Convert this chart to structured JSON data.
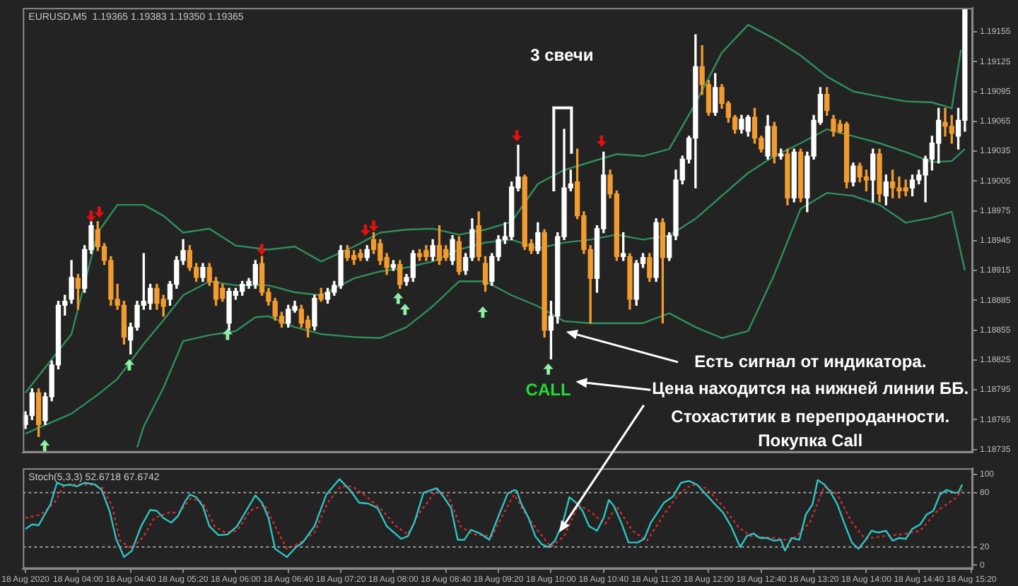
{
  "chart_data": [
    {
      "type": "candlestick",
      "title": "EURUSD,M5  1.19365 1.19383 1.19350 1.19365",
      "xlim": [
        "2020-08-18T03:18",
        "2020-08-18T15:21"
      ],
      "ylim": [
        1.18732,
        1.19179
      ],
      "yticks": [
        1.18735,
        1.18765,
        1.18795,
        1.18825,
        1.18855,
        1.18885,
        1.18915,
        1.18945,
        1.18975,
        1.19005,
        1.19035,
        1.19065,
        1.19095,
        1.19125,
        1.19155
      ],
      "tick_labels": "y",
      "x": [
        "2020-08-18T03:20",
        "2020-08-18T03:25",
        "2020-08-18T03:30",
        "2020-08-18T03:35",
        "2020-08-18T03:40",
        "2020-08-18T03:45",
        "2020-08-18T03:50",
        "2020-08-18T03:55",
        "2020-08-18T04:00",
        "2020-08-18T04:05",
        "2020-08-18T04:10",
        "2020-08-18T04:15",
        "2020-08-18T04:20",
        "2020-08-18T04:25",
        "2020-08-18T04:30",
        "2020-08-18T04:35",
        "2020-08-18T04:40",
        "2020-08-18T04:45",
        "2020-08-18T04:50",
        "2020-08-18T04:55",
        "2020-08-18T05:00",
        "2020-08-18T05:05",
        "2020-08-18T05:10",
        "2020-08-18T05:15",
        "2020-08-18T05:20",
        "2020-08-18T05:25",
        "2020-08-18T05:30",
        "2020-08-18T05:35",
        "2020-08-18T05:40",
        "2020-08-18T05:45",
        "2020-08-18T05:50",
        "2020-08-18T05:55",
        "2020-08-18T06:00",
        "2020-08-18T06:05",
        "2020-08-18T06:10",
        "2020-08-18T06:15",
        "2020-08-18T06:20",
        "2020-08-18T06:25",
        "2020-08-18T06:30",
        "2020-08-18T06:35",
        "2020-08-18T06:40",
        "2020-08-18T06:45",
        "2020-08-18T06:50",
        "2020-08-18T06:55",
        "2020-08-18T07:00",
        "2020-08-18T07:05",
        "2020-08-18T07:10",
        "2020-08-18T07:15",
        "2020-08-18T07:20",
        "2020-08-18T07:25",
        "2020-08-18T07:30",
        "2020-08-18T07:35",
        "2020-08-18T07:40",
        "2020-08-18T07:45",
        "2020-08-18T07:50",
        "2020-08-18T07:55",
        "2020-08-18T08:00",
        "2020-08-18T08:05",
        "2020-08-18T08:10",
        "2020-08-18T08:15",
        "2020-08-18T08:20",
        "2020-08-18T08:25",
        "2020-08-18T08:30",
        "2020-08-18T08:35",
        "2020-08-18T08:40",
        "2020-08-18T08:45",
        "2020-08-18T08:50",
        "2020-08-18T08:55",
        "2020-08-18T09:00",
        "2020-08-18T09:05",
        "2020-08-18T09:10",
        "2020-08-18T09:15",
        "2020-08-18T09:20",
        "2020-08-18T09:25",
        "2020-08-18T09:30",
        "2020-08-18T09:35",
        "2020-08-18T09:40",
        "2020-08-18T09:45",
        "2020-08-18T09:50",
        "2020-08-18T09:55",
        "2020-08-18T10:00",
        "2020-08-18T10:05",
        "2020-08-18T10:10",
        "2020-08-18T10:15",
        "2020-08-18T10:20",
        "2020-08-18T10:25",
        "2020-08-18T10:30",
        "2020-08-18T10:35",
        "2020-08-18T10:40",
        "2020-08-18T10:45",
        "2020-08-18T10:50",
        "2020-08-18T10:55",
        "2020-08-18T11:00",
        "2020-08-18T11:05",
        "2020-08-18T11:10",
        "2020-08-18T11:15",
        "2020-08-18T11:20",
        "2020-08-18T11:25",
        "2020-08-18T11:30",
        "2020-08-18T11:35",
        "2020-08-18T11:40",
        "2020-08-18T11:45",
        "2020-08-18T11:50",
        "2020-08-18T11:55",
        "2020-08-18T12:00",
        "2020-08-18T12:05",
        "2020-08-18T12:10",
        "2020-08-18T12:15",
        "2020-08-18T12:20",
        "2020-08-18T12:25",
        "2020-08-18T12:30",
        "2020-08-18T12:35",
        "2020-08-18T12:40",
        "2020-08-18T12:45",
        "2020-08-18T12:50",
        "2020-08-18T12:55",
        "2020-08-18T13:00",
        "2020-08-18T13:05",
        "2020-08-18T13:10",
        "2020-08-18T13:15",
        "2020-08-18T13:20",
        "2020-08-18T13:25",
        "2020-08-18T13:30",
        "2020-08-18T13:35",
        "2020-08-18T13:40",
        "2020-08-18T13:45",
        "2020-08-18T13:50",
        "2020-08-18T13:55",
        "2020-08-18T14:00",
        "2020-08-18T14:05",
        "2020-08-18T14:10",
        "2020-08-18T14:15",
        "2020-08-18T14:20",
        "2020-08-18T14:25",
        "2020-08-18T14:30",
        "2020-08-18T14:35",
        "2020-08-18T14:40",
        "2020-08-18T14:45",
        "2020-08-18T14:50",
        "2020-08-18T14:55",
        "2020-08-18T15:00",
        "2020-08-18T15:05",
        "2020-08-18T15:10",
        "2020-08-18T15:15"
      ],
      "ohlc": [
        [
          1.1876,
          1.18773,
          1.18756,
          1.18769
        ],
        [
          1.18769,
          1.18796,
          1.18765,
          1.18792
        ],
        [
          1.18792,
          1.18796,
          1.18748,
          1.1876
        ],
        [
          1.18764,
          1.18792,
          1.1876,
          1.18788
        ],
        [
          1.18788,
          1.18824,
          1.18784,
          1.1882
        ],
        [
          1.1882,
          1.18884,
          1.18816,
          1.1888
        ],
        [
          1.1888,
          1.1889,
          1.1887,
          1.18884
        ],
        [
          1.18886,
          1.18925,
          1.18882,
          1.18908
        ],
        [
          1.18907,
          1.18911,
          1.18876,
          1.18897
        ],
        [
          1.18897,
          1.1894,
          1.18893,
          1.18936
        ],
        [
          1.18936,
          1.18964,
          1.18932,
          1.1896
        ],
        [
          1.18956,
          1.18964,
          1.18935,
          1.18939
        ],
        [
          1.18939,
          1.18942,
          1.18921,
          1.18925
        ],
        [
          1.18925,
          1.18929,
          1.1888,
          1.18886
        ],
        [
          1.18886,
          1.18901,
          1.18876,
          1.1888
        ],
        [
          1.1888,
          1.18884,
          1.18841,
          1.18848
        ],
        [
          1.18845,
          1.18862,
          1.18831,
          1.18858
        ],
        [
          1.18858,
          1.18884,
          1.18855,
          1.1888
        ],
        [
          1.1888,
          1.18932,
          1.18876,
          1.18884
        ],
        [
          1.18882,
          1.18901,
          1.18876,
          1.18897
        ],
        [
          1.18897,
          1.18901,
          1.18876,
          1.18882
        ],
        [
          1.18886,
          1.1889,
          1.18869,
          1.18879
        ],
        [
          1.18886,
          1.18904,
          1.1888,
          1.18901
        ],
        [
          1.18901,
          1.18929,
          1.18897,
          1.18925
        ],
        [
          1.18925,
          1.18946,
          1.18921,
          1.18935
        ],
        [
          1.18935,
          1.1894,
          1.18915,
          1.18918
        ],
        [
          1.18918,
          1.18922,
          1.18904,
          1.18908
        ],
        [
          1.18908,
          1.18922,
          1.18904,
          1.18918
        ],
        [
          1.18918,
          1.18922,
          1.189,
          1.18904
        ],
        [
          1.18904,
          1.18908,
          1.1888,
          1.18886
        ],
        [
          1.18897,
          1.18901,
          1.18884,
          1.18887
        ],
        [
          1.18862,
          1.18897,
          1.18855,
          1.18894
        ],
        [
          1.1889,
          1.18897,
          1.18886,
          1.18894
        ],
        [
          1.18894,
          1.18904,
          1.1889,
          1.18901
        ],
        [
          1.189,
          1.18907,
          1.18897,
          1.18904
        ],
        [
          1.18901,
          1.18925,
          1.18897,
          1.18921
        ],
        [
          1.18922,
          1.18929,
          1.1889,
          1.18893
        ],
        [
          1.18893,
          1.18897,
          1.1888,
          1.18884
        ],
        [
          1.18884,
          1.18887,
          1.18865,
          1.18869
        ],
        [
          1.18869,
          1.18873,
          1.18858,
          1.18862
        ],
        [
          1.18862,
          1.1888,
          1.18858,
          1.18876
        ],
        [
          1.18875,
          1.18884,
          1.18873,
          1.18879
        ],
        [
          1.18876,
          1.1888,
          1.18858,
          1.18862
        ],
        [
          1.18865,
          1.18869,
          1.18848,
          1.18857
        ],
        [
          1.18859,
          1.1889,
          1.18855,
          1.18887
        ],
        [
          1.18891,
          1.18897,
          1.18884,
          1.18886
        ],
        [
          1.18886,
          1.18897,
          1.18882,
          1.18893
        ],
        [
          1.18893,
          1.18904,
          1.1889,
          1.189
        ],
        [
          1.189,
          1.1894,
          1.18897,
          1.18935
        ],
        [
          1.18935,
          1.1894,
          1.18925,
          1.18928
        ],
        [
          1.1893,
          1.18935,
          1.18921,
          1.18926
        ],
        [
          1.18932,
          1.18936,
          1.18925,
          1.18928
        ],
        [
          1.18928,
          1.1894,
          1.18925,
          1.18936
        ],
        [
          1.18946,
          1.18953,
          1.18932,
          1.18936
        ],
        [
          1.18942,
          1.18946,
          1.18921,
          1.18925
        ],
        [
          1.18928,
          1.18932,
          1.18911,
          1.18918
        ],
        [
          1.18918,
          1.18925,
          1.18915,
          1.18921
        ],
        [
          1.18921,
          1.18925,
          1.18897,
          1.18901
        ],
        [
          1.18904,
          1.18911,
          1.189,
          1.18908
        ],
        [
          1.18908,
          1.18935,
          1.18904,
          1.18932
        ],
        [
          1.18932,
          1.18936,
          1.18925,
          1.18929
        ],
        [
          1.18935,
          1.1894,
          1.18925,
          1.18929
        ],
        [
          1.18929,
          1.18946,
          1.18925,
          1.1894
        ],
        [
          1.1894,
          1.1896,
          1.18921,
          1.18925
        ],
        [
          1.18936,
          1.1894,
          1.18925,
          1.18928
        ],
        [
          1.18925,
          1.1895,
          1.18921,
          1.18946
        ],
        [
          1.18944,
          1.18949,
          1.18911,
          1.18914
        ],
        [
          1.18915,
          1.18932,
          1.18911,
          1.18928
        ],
        [
          1.18928,
          1.18967,
          1.18925,
          1.18956
        ],
        [
          1.1896,
          1.18974,
          1.18925,
          1.18929
        ],
        [
          1.18922,
          1.18929,
          1.18894,
          1.18901
        ],
        [
          1.18904,
          1.18932,
          1.189,
          1.18929
        ],
        [
          1.18929,
          1.1895,
          1.18925,
          1.18946
        ],
        [
          1.18946,
          1.18963,
          1.18942,
          1.18949
        ],
        [
          1.18949,
          1.19004,
          1.18946,
          1.18999
        ],
        [
          1.18998,
          1.19041,
          1.18995,
          1.19009
        ],
        [
          1.19009,
          1.19011,
          1.18936,
          1.18939
        ],
        [
          1.18942,
          1.18946,
          1.18932,
          1.18935
        ],
        [
          1.18935,
          1.18963,
          1.18932,
          1.18953
        ],
        [
          1.18953,
          1.18956,
          1.18848,
          1.18855
        ],
        [
          1.18855,
          1.18884,
          1.18826,
          1.18869
        ],
        [
          1.18869,
          1.18953,
          1.18862,
          1.18949
        ],
        [
          1.18949,
          1.19057,
          1.18946,
          1.18998
        ],
        [
          1.18998,
          1.19016,
          1.18995,
          1.19002
        ],
        [
          1.19004,
          1.19037,
          1.18967,
          1.1897
        ],
        [
          1.1897,
          1.18974,
          1.18932,
          1.18936
        ],
        [
          1.18936,
          1.1894,
          1.18862,
          1.18907
        ],
        [
          1.18907,
          1.1896,
          1.18893,
          1.18957
        ],
        [
          1.18957,
          1.19034,
          1.18953,
          1.19011
        ],
        [
          1.19011,
          1.19016,
          1.18988,
          1.18992
        ],
        [
          1.18992,
          1.18995,
          1.18925,
          1.18929
        ],
        [
          1.18929,
          1.18953,
          1.18925,
          1.18932
        ],
        [
          1.18929,
          1.18932,
          1.18876,
          1.18886
        ],
        [
          1.18886,
          1.18925,
          1.1888,
          1.18922
        ],
        [
          1.18922,
          1.18932,
          1.18918,
          1.18928
        ],
        [
          1.18928,
          1.18932,
          1.18904,
          1.18908
        ],
        [
          1.18908,
          1.18967,
          1.18904,
          1.18963
        ],
        [
          1.18963,
          1.18967,
          1.18862,
          1.18928
        ],
        [
          1.18928,
          1.18953,
          1.18925,
          1.1895
        ],
        [
          1.1895,
          1.19016,
          1.18946,
          1.19006
        ],
        [
          1.19006,
          1.1903,
          1.19002,
          1.19027
        ],
        [
          1.19027,
          1.1905,
          1.19023,
          1.19048
        ],
        [
          1.19048,
          1.19152,
          1.18998,
          1.1912
        ],
        [
          1.1912,
          1.19141,
          1.19092,
          1.19102
        ],
        [
          1.19102,
          1.19106,
          1.19071,
          1.19074
        ],
        [
          1.19074,
          1.19113,
          1.19071,
          1.19099
        ],
        [
          1.19099,
          1.19102,
          1.19078,
          1.19083
        ],
        [
          1.19083,
          1.19085,
          1.19064,
          1.19069
        ],
        [
          1.19069,
          1.19071,
          1.19053,
          1.19057
        ],
        [
          1.19057,
          1.19071,
          1.19053,
          1.19067
        ],
        [
          1.19055,
          1.19071,
          1.1905,
          1.19069
        ],
        [
          1.19069,
          1.19078,
          1.19043,
          1.19048
        ],
        [
          1.19048,
          1.1905,
          1.19034,
          1.19037
        ],
        [
          1.1903,
          1.19071,
          1.19027,
          1.1906
        ],
        [
          1.1906,
          1.19064,
          1.19023,
          1.1903
        ],
        [
          1.1903,
          1.19037,
          1.19027,
          1.19032
        ],
        [
          1.19032,
          1.19037,
          1.18981,
          1.18988
        ],
        [
          1.18988,
          1.19037,
          1.18984,
          1.19034
        ],
        [
          1.19034,
          1.19037,
          1.18984,
          1.18988
        ],
        [
          1.18988,
          1.19034,
          1.18974,
          1.1903
        ],
        [
          1.1903,
          1.19071,
          1.19027,
          1.19066
        ],
        [
          1.19064,
          1.19099,
          1.19062,
          1.19092
        ],
        [
          1.19092,
          1.19099,
          1.19071,
          1.19076
        ],
        [
          1.19067,
          1.19071,
          1.1905,
          1.19055
        ],
        [
          1.19062,
          1.19066,
          1.19053,
          1.19055
        ],
        [
          1.19062,
          1.19064,
          1.18998,
          1.19004
        ],
        [
          1.19004,
          1.19023,
          1.19,
          1.1902
        ],
        [
          1.1902,
          1.19023,
          1.19004,
          1.19009
        ],
        [
          1.19009,
          1.19016,
          1.18995,
          1.19006
        ],
        [
          1.19006,
          1.19037,
          1.18984,
          1.19032
        ],
        [
          1.19032,
          1.19037,
          1.18984,
          1.18992
        ],
        [
          1.1899,
          1.19011,
          1.18981,
          1.19004
        ],
        [
          1.19004,
          1.19016,
          1.18988,
          1.18998
        ],
        [
          1.18998,
          1.19009,
          1.18988,
          1.18995
        ],
        [
          1.18998,
          1.19006,
          1.1899,
          1.18995
        ],
        [
          1.18998,
          1.19011,
          1.1899,
          1.19006
        ],
        [
          1.19006,
          1.19016,
          1.19002,
          1.19011
        ],
        [
          1.19011,
          1.1903,
          1.18984,
          1.19027
        ],
        [
          1.19027,
          1.1905,
          1.19016,
          1.19043
        ],
        [
          1.19043,
          1.19078,
          1.19023,
          1.19066
        ],
        [
          1.19064,
          1.19078,
          1.1905,
          1.1906
        ],
        [
          1.1906,
          1.19071,
          1.19043,
          1.19053
        ],
        [
          1.1905,
          1.19078,
          1.19037,
          1.19066
        ],
        [
          1.19066,
          1.19178,
          1.19055,
          1.19178
        ]
      ],
      "colors": [
        "#ffffff",
        "#ffffff",
        "#f29b2e",
        "#ffffff",
        "#ffffff",
        "#ffffff",
        "#ffffff",
        "#ffffff",
        "#f29b2e",
        "#ffffff",
        "#ffffff",
        "#f29b2e",
        "#f29b2e",
        "#f29b2e",
        "#f29b2e",
        "#f29b2e",
        "#ffffff",
        "#ffffff",
        "#ffffff",
        "#ffffff",
        "#f29b2e",
        "#f29b2e",
        "#ffffff",
        "#ffffff",
        "#ffffff",
        "#f29b2e",
        "#f29b2e",
        "#ffffff",
        "#f29b2e",
        "#f29b2e",
        "#f29b2e",
        "#ffffff",
        "#ffffff",
        "#ffffff",
        "#ffffff",
        "#ffffff",
        "#f29b2e",
        "#f29b2e",
        "#f29b2e",
        "#f29b2e",
        "#ffffff",
        "#ffffff",
        "#f29b2e",
        "#f29b2e",
        "#ffffff",
        "#f29b2e",
        "#ffffff",
        "#ffffff",
        "#ffffff",
        "#f29b2e",
        "#f29b2e",
        "#f29b2e",
        "#ffffff",
        "#f29b2e",
        "#f29b2e",
        "#f29b2e",
        "#ffffff",
        "#f29b2e",
        "#ffffff",
        "#ffffff",
        "#f29b2e",
        "#f29b2e",
        "#ffffff",
        "#f29b2e",
        "#f29b2e",
        "#ffffff",
        "#f29b2e",
        "#ffffff",
        "#ffffff",
        "#f29b2e",
        "#f29b2e",
        "#ffffff",
        "#ffffff",
        "#ffffff",
        "#ffffff",
        "#ffffff",
        "#f29b2e",
        "#f29b2e",
        "#ffffff",
        "#f29b2e",
        "#ffffff",
        "#ffffff",
        "#ffffff",
        "#ffffff",
        "#f29b2e",
        "#f29b2e",
        "#f29b2e",
        "#ffffff",
        "#ffffff",
        "#f29b2e",
        "#f29b2e",
        "#ffffff",
        "#f29b2e",
        "#ffffff",
        "#ffffff",
        "#f29b2e",
        "#ffffff",
        "#f29b2e",
        "#ffffff",
        "#ffffff",
        "#ffffff",
        "#ffffff",
        "#ffffff",
        "#f29b2e",
        "#f29b2e",
        "#ffffff",
        "#f29b2e",
        "#f29b2e",
        "#f29b2e",
        "#ffffff",
        "#ffffff",
        "#f29b2e",
        "#f29b2e",
        "#ffffff",
        "#f29b2e",
        "#ffffff",
        "#f29b2e",
        "#ffffff",
        "#f29b2e",
        "#ffffff",
        "#ffffff",
        "#ffffff",
        "#f29b2e",
        "#f29b2e",
        "#f29b2e",
        "#f29b2e",
        "#ffffff",
        "#f29b2e",
        "#f29b2e",
        "#ffffff",
        "#f29b2e",
        "#ffffff",
        "#f29b2e",
        "#f29b2e",
        "#f29b2e",
        "#ffffff",
        "#ffffff",
        "#ffffff",
        "#ffffff",
        "#ffffff",
        "#f29b2e",
        "#f29b2e",
        "#ffffff",
        "#ffffff"
      ],
      "series": [
        {
          "type": "line",
          "color": "#2f8f5a",
          "x": [
            "2020-08-18T03:20",
            "2020-08-18T03:55",
            "2020-08-18T04:15",
            "2020-08-18T04:30",
            "2020-08-18T04:50",
            "2020-08-18T05:05",
            "2020-08-18T05:20",
            "2020-08-18T05:40",
            "2020-08-18T06:00",
            "2020-08-18T06:25",
            "2020-08-18T06:45",
            "2020-08-18T07:05",
            "2020-08-18T07:30",
            "2020-08-18T07:50",
            "2020-08-18T08:10",
            "2020-08-18T08:30",
            "2020-08-18T08:50",
            "2020-08-18T09:10",
            "2020-08-18T09:30",
            "2020-08-18T09:50",
            "2020-08-18T10:10",
            "2020-08-18T10:30",
            "2020-08-18T10:50",
            "2020-08-18T11:10",
            "2020-08-18T11:30",
            "2020-08-18T11:50",
            "2020-08-18T12:10",
            "2020-08-18T12:30",
            "2020-08-18T12:50",
            "2020-08-18T13:10",
            "2020-08-18T13:30",
            "2020-08-18T13:50",
            "2020-08-18T14:10",
            "2020-08-18T14:30",
            "2020-08-18T14:50",
            "2020-08-18T15:05",
            "2020-08-18T15:12"
          ],
          "values": [
            1.18792,
            1.18851,
            1.18953,
            1.18981,
            1.18981,
            1.1897,
            1.18953,
            1.18957,
            1.1894,
            1.18936,
            1.18939,
            1.18924,
            1.18939,
            1.18953,
            1.18956,
            1.18957,
            1.18951,
            1.18956,
            1.18964,
            1.19002,
            1.19016,
            1.19024,
            1.19032,
            1.1903,
            1.19037,
            1.19083,
            1.19134,
            1.19162,
            1.19148,
            1.19131,
            1.1911,
            1.19095,
            1.1909,
            1.19085,
            1.19084,
            1.19078,
            1.19137
          ]
        },
        {
          "type": "line",
          "color": "#2f8f5a",
          "x": [
            "2020-08-18T03:20",
            "2020-08-18T03:55",
            "2020-08-18T04:15",
            "2020-08-18T04:30",
            "2020-08-18T04:50",
            "2020-08-18T05:05",
            "2020-08-18T05:20",
            "2020-08-18T05:40",
            "2020-08-18T06:00",
            "2020-08-18T06:25",
            "2020-08-18T06:45",
            "2020-08-18T07:05",
            "2020-08-18T07:30",
            "2020-08-18T07:50",
            "2020-08-18T08:10",
            "2020-08-18T08:30",
            "2020-08-18T08:50",
            "2020-08-18T09:10",
            "2020-08-18T09:30",
            "2020-08-18T09:50",
            "2020-08-18T10:10",
            "2020-08-18T10:30",
            "2020-08-18T10:50",
            "2020-08-18T11:10",
            "2020-08-18T11:30",
            "2020-08-18T11:50",
            "2020-08-18T12:10",
            "2020-08-18T12:30",
            "2020-08-18T12:50",
            "2020-08-18T13:10",
            "2020-08-18T13:30",
            "2020-08-18T13:50",
            "2020-08-18T14:10",
            "2020-08-18T14:30",
            "2020-08-18T14:50",
            "2020-08-18T15:05",
            "2020-08-18T15:15"
          ],
          "values": [
            1.18751,
            1.18771,
            1.1879,
            1.18806,
            1.18841,
            1.18865,
            1.1889,
            1.18904,
            1.189,
            1.189,
            1.18893,
            1.1889,
            1.18907,
            1.18914,
            1.18918,
            1.18924,
            1.18936,
            1.18943,
            1.18946,
            1.18937,
            1.18943,
            1.18946,
            1.18951,
            1.18946,
            1.1895,
            1.18967,
            1.1899,
            1.19013,
            1.1903,
            1.19043,
            1.19057,
            1.1905,
            1.19043,
            1.19034,
            1.19024,
            1.19025,
            1.19037
          ]
        },
        {
          "type": "line",
          "color": "#2f8f5a",
          "x": [
            "2020-08-18T04:45",
            "2020-08-18T04:50",
            "2020-08-18T05:05",
            "2020-08-18T05:20",
            "2020-08-18T05:40",
            "2020-08-18T06:00",
            "2020-08-18T06:15",
            "2020-08-18T06:25",
            "2020-08-18T06:45",
            "2020-08-18T07:05",
            "2020-08-18T07:30",
            "2020-08-18T07:50",
            "2020-08-18T08:10",
            "2020-08-18T08:30",
            "2020-08-18T08:50",
            "2020-08-18T09:10",
            "2020-08-18T09:30",
            "2020-08-18T09:50",
            "2020-08-18T10:10",
            "2020-08-18T10:30",
            "2020-08-18T10:50",
            "2020-08-18T11:10",
            "2020-08-18T11:30",
            "2020-08-18T11:50",
            "2020-08-18T12:10",
            "2020-08-18T12:30",
            "2020-08-18T12:50",
            "2020-08-18T13:10",
            "2020-08-18T13:30",
            "2020-08-18T13:50",
            "2020-08-18T14:10",
            "2020-08-18T14:30",
            "2020-08-18T14:50",
            "2020-08-18T15:05",
            "2020-08-18T15:15"
          ],
          "values": [
            1.18737,
            1.18758,
            1.18797,
            1.18844,
            1.1885,
            1.18854,
            1.18868,
            1.18869,
            1.18858,
            1.18851,
            1.18848,
            1.18847,
            1.18858,
            1.18879,
            1.18904,
            1.18904,
            1.1889,
            1.18879,
            1.18864,
            1.18862,
            1.18862,
            1.18862,
            1.18872,
            1.18858,
            1.18847,
            1.18854,
            1.18911,
            1.18977,
            1.18993,
            1.1899,
            1.18981,
            1.18963,
            1.18968,
            1.18974,
            1.18915
          ]
        }
      ],
      "annotations": [
        "3 свечи",
        "CALL",
        "Есть сигнал от индикатора.",
        "Цена находится на нижней линии ББ.",
        "Стохаститик в перепроданности.",
        "Покупка Call"
      ]
    },
    {
      "type": "line",
      "title": "Stoch(5,3,3) 52.6718 67.6742",
      "xlim": [
        "2020-08-18T03:18",
        "2020-08-18T15:21"
      ],
      "ylim": [
        -4,
        107
      ],
      "yticks": [
        0,
        20,
        80,
        100
      ],
      "xticks": [
        {
          "value": "2020-08-18T03:20",
          "label": "18 Aug 2020"
        },
        {
          "value": "2020-08-18T04:00",
          "label": "18 Aug 04:00"
        },
        {
          "value": "2020-08-18T04:40",
          "label": "18 Aug 04:40"
        },
        {
          "value": "2020-08-18T05:20",
          "label": "18 Aug 05:20"
        },
        {
          "value": "2020-08-18T06:00",
          "label": "18 Aug 06:00"
        },
        {
          "value": "2020-08-18T06:40",
          "label": "18 Aug 06:40"
        },
        {
          "value": "2020-08-18T07:20",
          "label": "18 Aug 07:20"
        },
        {
          "value": "2020-08-18T08:00",
          "label": "18 Aug 08:00"
        },
        {
          "value": "2020-08-18T08:40",
          "label": "18 Aug 08:40"
        },
        {
          "value": "2020-08-18T09:20",
          "label": "18 Aug 09:20"
        },
        {
          "value": "2020-08-18T10:00",
          "label": "18 Aug 10:00"
        },
        {
          "value": "2020-08-18T10:40",
          "label": "18 Aug 10:40"
        },
        {
          "value": "2020-08-18T11:20",
          "label": "18 Aug 11:20"
        },
        {
          "value": "2020-08-18T12:00",
          "label": "18 Aug 12:00"
        },
        {
          "value": "2020-08-18T12:40",
          "label": "18 Aug 12:40"
        },
        {
          "value": "2020-08-18T13:20",
          "label": "18 Aug 13:20"
        },
        {
          "value": "2020-08-18T14:00",
          "label": "18 Aug 14:00"
        },
        {
          "value": "2020-08-18T14:40",
          "label": "18 Aug 14:40"
        },
        {
          "value": "2020-08-18T15:20",
          "label": "18 Aug 15:20"
        }
      ],
      "ref_lines": [
        {
          "axis": "y",
          "value": 80,
          "color": "#9a9a9a",
          "line_style": "dotted"
        },
        {
          "axis": "y",
          "value": 20,
          "color": "#9a9a9a",
          "line_style": "dotted"
        }
      ],
      "series": [
        {
          "color": "#2ec4c4",
          "x": [
            "2020-08-18T03:20",
            "2020-08-18T03:25",
            "2020-08-18T03:30",
            "2020-08-18T03:39",
            "2020-08-18T03:44",
            "2020-08-18T03:49",
            "2020-08-18T03:54",
            "2020-08-18T03:59",
            "2020-08-18T04:05",
            "2020-08-18T04:13",
            "2020-08-18T04:18",
            "2020-08-18T04:24",
            "2020-08-18T04:29",
            "2020-08-18T04:35",
            "2020-08-18T04:41",
            "2020-08-18T04:48",
            "2020-08-18T04:55",
            "2020-08-18T05:00",
            "2020-08-18T05:05",
            "2020-08-18T05:11",
            "2020-08-18T05:16",
            "2020-08-18T05:21",
            "2020-08-18T05:25",
            "2020-08-18T05:30",
            "2020-08-18T05:35",
            "2020-08-18T05:40",
            "2020-08-18T05:47",
            "2020-08-18T05:54",
            "2020-08-18T06:01",
            "2020-08-18T06:08",
            "2020-08-18T06:15",
            "2020-08-18T06:20",
            "2020-08-18T06:25",
            "2020-08-18T06:30",
            "2020-08-18T06:39",
            "2020-08-18T06:46",
            "2020-08-18T06:51",
            "2020-08-18T07:00",
            "2020-08-18T07:09",
            "2020-08-18T07:19",
            "2020-08-18T07:27",
            "2020-08-18T07:34",
            "2020-08-18T07:41",
            "2020-08-18T07:48",
            "2020-08-18T07:55",
            "2020-08-18T08:06",
            "2020-08-18T08:11",
            "2020-08-18T08:16",
            "2020-08-18T08:23",
            "2020-08-18T08:33",
            "2020-08-18T08:38",
            "2020-08-18T08:44",
            "2020-08-18T08:49",
            "2020-08-18T08:54",
            "2020-08-18T08:59",
            "2020-08-18T09:06",
            "2020-08-18T09:13",
            "2020-08-18T09:20",
            "2020-08-18T09:27",
            "2020-08-18T09:32",
            "2020-08-18T09:34",
            "2020-08-18T09:37",
            "2020-08-18T09:43",
            "2020-08-18T09:48",
            "2020-08-18T09:53",
            "2020-08-18T09:58",
            "2020-08-18T10:03",
            "2020-08-18T10:09",
            "2020-08-18T10:14",
            "2020-08-18T10:19",
            "2020-08-18T10:24",
            "2020-08-18T10:29",
            "2020-08-18T10:35",
            "2020-08-18T10:40",
            "2020-08-18T10:44",
            "2020-08-18T10:48",
            "2020-08-18T10:54",
            "2020-08-18T10:59",
            "2020-08-18T11:06",
            "2020-08-18T11:11",
            "2020-08-18T11:16",
            "2020-08-18T11:21",
            "2020-08-18T11:26",
            "2020-08-18T11:33",
            "2020-08-18T11:39",
            "2020-08-18T11:45",
            "2020-08-18T11:51",
            "2020-08-18T11:58",
            "2020-08-18T12:05",
            "2020-08-18T12:11",
            "2020-08-18T12:17",
            "2020-08-18T12:24",
            "2020-08-18T12:29",
            "2020-08-18T12:34",
            "2020-08-18T12:39",
            "2020-08-18T12:44",
            "2020-08-18T12:50",
            "2020-08-18T12:55",
            "2020-08-18T12:58",
            "2020-08-18T13:03",
            "2020-08-18T13:09",
            "2020-08-18T13:14",
            "2020-08-18T13:19",
            "2020-08-18T13:23",
            "2020-08-18T13:28",
            "2020-08-18T13:33",
            "2020-08-18T13:38",
            "2020-08-18T13:43",
            "2020-08-18T13:49",
            "2020-08-18T13:54",
            "2020-08-18T13:59",
            "2020-08-18T14:04",
            "2020-08-18T14:09",
            "2020-08-18T14:15",
            "2020-08-18T14:20",
            "2020-08-18T14:25",
            "2020-08-18T14:30",
            "2020-08-18T14:35",
            "2020-08-18T14:41",
            "2020-08-18T14:46",
            "2020-08-18T14:51",
            "2020-08-18T14:56",
            "2020-08-18T15:01",
            "2020-08-18T15:07",
            "2020-08-18T15:10",
            "2020-08-18T15:13"
          ],
          "values": [
            40,
            45,
            44,
            67,
            91,
            88,
            89,
            87,
            91,
            89,
            83,
            60,
            29,
            9,
            16,
            43,
            61,
            60,
            52,
            47,
            54,
            69,
            78,
            75,
            65,
            43,
            33,
            34,
            43,
            60,
            77,
            69,
            52,
            18,
            9,
            20,
            25,
            43,
            78,
            95,
            83,
            69,
            68,
            63,
            43,
            29,
            32,
            47,
            80,
            85,
            76,
            63,
            28,
            28,
            39,
            35,
            28,
            54,
            79,
            83,
            82,
            69,
            52,
            32,
            23,
            20,
            27,
            47,
            75,
            69,
            60,
            43,
            38,
            52,
            72,
            65,
            45,
            25,
            25,
            29,
            47,
            58,
            69,
            76,
            91,
            93,
            89,
            78,
            67,
            58,
            43,
            20,
            32,
            35,
            30,
            30,
            27,
            28,
            16,
            30,
            28,
            56,
            67,
            94,
            89,
            80,
            67,
            47,
            25,
            18,
            27,
            38,
            36,
            38,
            27,
            30,
            29,
            40,
            45,
            56,
            60,
            78,
            83,
            80,
            80,
            89
          ]
        },
        {
          "color": "#d22a2a",
          "line_style": "dotted",
          "x": [
            "2020-08-18T03:20",
            "2020-08-18T03:32",
            "2020-08-18T03:42",
            "2020-08-18T03:49",
            "2020-08-18T03:56",
            "2020-08-18T04:10",
            "2020-08-18T04:19",
            "2020-08-18T04:26",
            "2020-08-18T04:32",
            "2020-08-18T04:41",
            "2020-08-18T04:50",
            "2020-08-18T04:58",
            "2020-08-18T05:09",
            "2020-08-18T05:17",
            "2020-08-18T05:26",
            "2020-08-18T05:35",
            "2020-08-18T05:44",
            "2020-08-18T05:52",
            "2020-08-18T06:01",
            "2020-08-18T06:11",
            "2020-08-18T06:22",
            "2020-08-18T06:30",
            "2020-08-18T06:39",
            "2020-08-18T06:49",
            "2020-08-18T07:00",
            "2020-08-18T07:10",
            "2020-08-18T07:20",
            "2020-08-18T07:29",
            "2020-08-18T07:41",
            "2020-08-18T07:52",
            "2020-08-18T08:02",
            "2020-08-18T08:11",
            "2020-08-18T08:19",
            "2020-08-18T08:33",
            "2020-08-18T08:42",
            "2020-08-18T08:51",
            "2020-08-18T09:01",
            "2020-08-18T09:15",
            "2020-08-18T09:25",
            "2020-08-18T09:32",
            "2020-08-18T09:39",
            "2020-08-18T09:50",
            "2020-08-18T10:00",
            "2020-08-18T10:10",
            "2020-08-18T10:21",
            "2020-08-18T10:31",
            "2020-08-18T10:41",
            "2020-08-18T10:50",
            "2020-08-18T11:02",
            "2020-08-18T11:13",
            "2020-08-18T11:26",
            "2020-08-18T11:37",
            "2020-08-18T11:47",
            "2020-08-18T11:58",
            "2020-08-18T12:11",
            "2020-08-18T12:22",
            "2020-08-18T12:32",
            "2020-08-18T12:50",
            "2020-08-18T13:03",
            "2020-08-18T13:17",
            "2020-08-18T13:28",
            "2020-08-18T13:38",
            "2020-08-18T13:49",
            "2020-08-18T13:59",
            "2020-08-18T14:13",
            "2020-08-18T14:27",
            "2020-08-18T14:41",
            "2020-08-18T14:54",
            "2020-08-18T15:08",
            "2020-08-18T15:13"
          ],
          "values": [
            52,
            56,
            69,
            87,
            89,
            89,
            85,
            65,
            27,
            18,
            32,
            52,
            58,
            58,
            74,
            69,
            43,
            36,
            38,
            60,
            67,
            43,
            18,
            25,
            36,
            69,
            87,
            87,
            74,
            60,
            43,
            34,
            56,
            83,
            76,
            43,
            34,
            32,
            60,
            78,
            60,
            38,
            20,
            32,
            67,
            58,
            45,
            65,
            38,
            27,
            56,
            78,
            89,
            85,
            65,
            43,
            32,
            30,
            27,
            47,
            87,
            78,
            47,
            29,
            32,
            34,
            38,
            60,
            74,
            83
          ]
        }
      ]
    }
  ]
}
